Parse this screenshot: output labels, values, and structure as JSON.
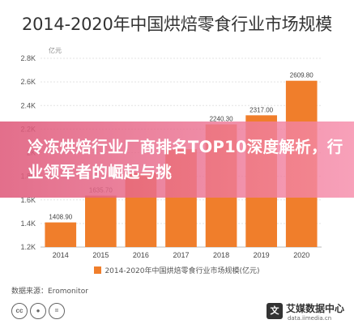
{
  "header": {
    "title": "2014-2020年中国烘焙零食行业市场规模"
  },
  "chart_data": {
    "type": "bar",
    "title": "2014-2020年中国烘焙零食行业市场规模",
    "unit_label": "亿元",
    "categories": [
      "2014",
      "2015",
      "2016",
      "2017",
      "2018",
      "2019",
      "2020"
    ],
    "series": [
      {
        "name": "2014-2020年中国烘焙零食行业市场规模(亿元)",
        "values": [
          1408.9,
          1635.7,
          1830,
          2030,
          2240.3,
          2317.0,
          2609.8
        ]
      }
    ],
    "data_labels": [
      "1408.90",
      "1635.70",
      "",
      "",
      "2240.30",
      "2317.00",
      "2609.80"
    ],
    "yticks": [
      "1.2K",
      "1.4K",
      "1.6K",
      "1.8K",
      "2K",
      "2.2K",
      "2.4K",
      "2.6K",
      "2.8K"
    ],
    "ylim": [
      1200,
      2800
    ],
    "grid": true,
    "legend_position": "bottom",
    "bar_color": "#F07E2B"
  },
  "legend": {
    "label": "2014-2020年中国烘焙零食行业市场规模(亿元)"
  },
  "source": {
    "label": "数据来源：Eromonitor"
  },
  "license": {
    "icons": [
      "cc",
      "by",
      "nd"
    ]
  },
  "brand": {
    "logo_char": "文",
    "name": "艾媒数据中心",
    "sub": "data.iimedia.cn"
  },
  "overlay": {
    "headline": "冷冻烘焙行业厂商排名TOP10深度解析，行业领军者的崛起与挑"
  }
}
